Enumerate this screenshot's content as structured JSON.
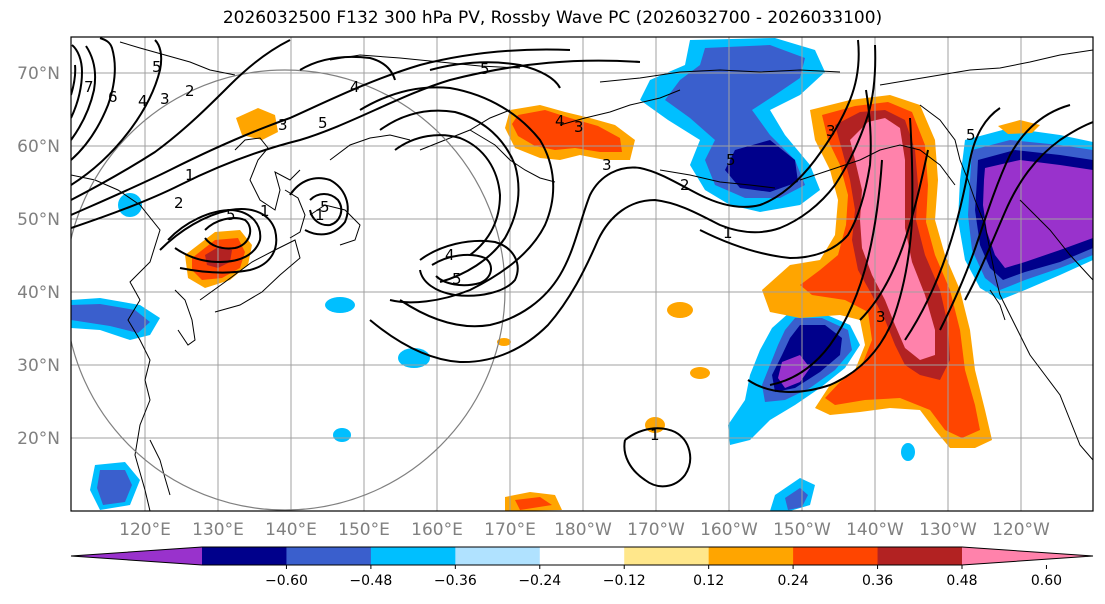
{
  "title": "2026032500 F132 300 hPa PV, Rossby Wave PC (2026032700 - 2026033100)",
  "lat_labels": [
    "70°N",
    "60°N",
    "50°N",
    "40°N",
    "30°N",
    "20°N"
  ],
  "lon_labels": [
    "120°E",
    "130°E",
    "140°E",
    "150°E",
    "160°E",
    "170°E",
    "180°W",
    "170°W",
    "160°W",
    "150°W",
    "140°W",
    "130°W",
    "120°W"
  ],
  "colorbar": {
    "ticks": [
      "−0.60",
      "−0.48",
      "−0.36",
      "−0.24",
      "−0.12",
      "0.12",
      "0.24",
      "0.36",
      "0.48",
      "0.60"
    ],
    "colors": [
      "#9932cc",
      "#00008b",
      "#3a5fcd",
      "#00bfff",
      "#b0e2ff",
      "#ffffff",
      "#ffe78b",
      "#ffa500",
      "#ff4500",
      "#b22222",
      "#ff82ab"
    ]
  },
  "contour_labels": [
    "7",
    "6",
    "5",
    "4",
    "3",
    "2",
    "1",
    "1",
    "2",
    "5",
    "3",
    "5",
    "4",
    "5",
    "4",
    "5",
    "3",
    "1",
    "1",
    "3",
    "3",
    "5",
    "5",
    "2",
    "5",
    "4",
    "1",
    "3"
  ],
  "colors": {
    "neg_060": "#9932cc",
    "neg_048": "#00008b",
    "neg_036": "#3a5fcd",
    "neg_024": "#00bfff",
    "neg_012": "#b0e2ff",
    "pos_012": "#ffe78b",
    "pos_024": "#ffa500",
    "pos_036": "#ff4500",
    "pos_048": "#b22222",
    "pos_060": "#ff82ab",
    "grid": "#a0a0a0",
    "axis_labels": "#808080"
  }
}
